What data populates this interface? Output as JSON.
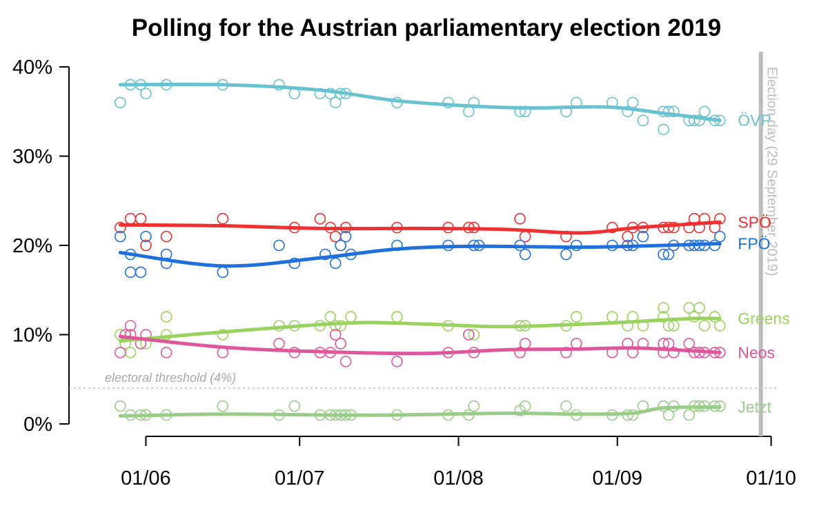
{
  "chart_data": {
    "type": "scatter",
    "title": "Polling for the Austrian parliamentary election 2019",
    "xlabel": "",
    "ylabel": "",
    "x_range": [
      "2019-05-17",
      "2019-10-02"
    ],
    "ylim": [
      0,
      40
    ],
    "x_ticks": [
      {
        "date": "2019-06-01",
        "label": "01/06"
      },
      {
        "date": "2019-07-01",
        "label": "01/07"
      },
      {
        "date": "2019-08-01",
        "label": "01/08"
      },
      {
        "date": "2019-09-01",
        "label": "01/09"
      },
      {
        "date": "2019-10-01",
        "label": "01/10"
      }
    ],
    "y_ticks": [
      {
        "value": 0,
        "label": "0%"
      },
      {
        "value": 10,
        "label": "10%"
      },
      {
        "value": 20,
        "label": "20%"
      },
      {
        "value": 30,
        "label": "30%"
      },
      {
        "value": 40,
        "label": "40%"
      }
    ],
    "grid": false,
    "threshold": {
      "value": 4,
      "label": "electoral threshold (4%)",
      "color": "#a9a9a9"
    },
    "election_day": {
      "date": "2019-09-29",
      "label": "Election day (29 September 2019)",
      "color": "#bdbdbd"
    },
    "series": [
      {
        "name": "ÖVP",
        "color": "#69c2d0",
        "points": [
          [
            "2019-05-27",
            36
          ],
          [
            "2019-05-29",
            38
          ],
          [
            "2019-05-31",
            38
          ],
          [
            "2019-06-01",
            37
          ],
          [
            "2019-06-05",
            38
          ],
          [
            "2019-06-16",
            38
          ],
          [
            "2019-06-27",
            38
          ],
          [
            "2019-06-30",
            37
          ],
          [
            "2019-07-05",
            37
          ],
          [
            "2019-07-07",
            37
          ],
          [
            "2019-07-08",
            36
          ],
          [
            "2019-07-09",
            37
          ],
          [
            "2019-07-10",
            37
          ],
          [
            "2019-07-20",
            36
          ],
          [
            "2019-07-30",
            36
          ],
          [
            "2019-08-03",
            35
          ],
          [
            "2019-08-04",
            36
          ],
          [
            "2019-08-13",
            35
          ],
          [
            "2019-08-14",
            35
          ],
          [
            "2019-08-22",
            35
          ],
          [
            "2019-08-24",
            36
          ],
          [
            "2019-08-31",
            36
          ],
          [
            "2019-09-03",
            35
          ],
          [
            "2019-09-04",
            36
          ],
          [
            "2019-09-06",
            34
          ],
          [
            "2019-09-10",
            35
          ],
          [
            "2019-09-10",
            33
          ],
          [
            "2019-09-11",
            35
          ],
          [
            "2019-09-12",
            35
          ],
          [
            "2019-09-15",
            34
          ],
          [
            "2019-09-16",
            34
          ],
          [
            "2019-09-17",
            34
          ],
          [
            "2019-09-18",
            35
          ],
          [
            "2019-09-20",
            34
          ],
          [
            "2019-09-21",
            34
          ]
        ],
        "trend": [
          [
            "2019-05-27",
            38
          ],
          [
            "2019-06-16",
            38
          ],
          [
            "2019-07-05",
            37.4
          ],
          [
            "2019-07-20",
            36.2
          ],
          [
            "2019-08-04",
            35.6
          ],
          [
            "2019-08-15",
            35.4
          ],
          [
            "2019-08-30",
            35.5
          ],
          [
            "2019-09-10",
            34.8
          ],
          [
            "2019-09-21",
            34
          ]
        ]
      },
      {
        "name": "SPÖ",
        "color": "#f03030",
        "points": [
          [
            "2019-05-27",
            22
          ],
          [
            "2019-05-29",
            23
          ],
          [
            "2019-05-31",
            23
          ],
          [
            "2019-06-01",
            20
          ],
          [
            "2019-06-05",
            21
          ],
          [
            "2019-06-16",
            23
          ],
          [
            "2019-06-30",
            22
          ],
          [
            "2019-07-05",
            23
          ],
          [
            "2019-07-07",
            22
          ],
          [
            "2019-07-08",
            21
          ],
          [
            "2019-07-09",
            20
          ],
          [
            "2019-07-10",
            22
          ],
          [
            "2019-07-20",
            22
          ],
          [
            "2019-07-30",
            22
          ],
          [
            "2019-08-03",
            22
          ],
          [
            "2019-08-04",
            22
          ],
          [
            "2019-08-13",
            23
          ],
          [
            "2019-08-14",
            21
          ],
          [
            "2019-08-22",
            21
          ],
          [
            "2019-08-31",
            22
          ],
          [
            "2019-09-03",
            21
          ],
          [
            "2019-09-04",
            22
          ],
          [
            "2019-09-06",
            22
          ],
          [
            "2019-09-10",
            22
          ],
          [
            "2019-09-11",
            22
          ],
          [
            "2019-09-12",
            22
          ],
          [
            "2019-09-15",
            22
          ],
          [
            "2019-09-16",
            23
          ],
          [
            "2019-09-17",
            22
          ],
          [
            "2019-09-18",
            23
          ],
          [
            "2019-09-20",
            22
          ],
          [
            "2019-09-21",
            23
          ]
        ],
        "trend": [
          [
            "2019-05-27",
            22.3
          ],
          [
            "2019-06-16",
            22.2
          ],
          [
            "2019-07-05",
            21.9
          ],
          [
            "2019-07-25",
            21.9
          ],
          [
            "2019-08-10",
            21.8
          ],
          [
            "2019-08-25",
            21.4
          ],
          [
            "2019-09-05",
            22
          ],
          [
            "2019-09-21",
            22.6
          ]
        ]
      },
      {
        "name": "FPÖ",
        "color": "#1f6fdc",
        "points": [
          [
            "2019-05-27",
            21
          ],
          [
            "2019-05-29",
            19
          ],
          [
            "2019-05-29",
            17
          ],
          [
            "2019-05-31",
            17
          ],
          [
            "2019-06-01",
            21
          ],
          [
            "2019-06-05",
            18
          ],
          [
            "2019-06-05",
            19
          ],
          [
            "2019-06-16",
            17
          ],
          [
            "2019-06-27",
            20
          ],
          [
            "2019-06-30",
            18
          ],
          [
            "2019-07-06",
            19
          ],
          [
            "2019-07-08",
            18
          ],
          [
            "2019-07-09",
            20
          ],
          [
            "2019-07-10",
            21
          ],
          [
            "2019-07-11",
            19
          ],
          [
            "2019-07-20",
            20
          ],
          [
            "2019-07-30",
            20
          ],
          [
            "2019-08-04",
            20
          ],
          [
            "2019-08-05",
            20
          ],
          [
            "2019-08-13",
            20
          ],
          [
            "2019-08-14",
            19
          ],
          [
            "2019-08-22",
            19
          ],
          [
            "2019-08-24",
            20
          ],
          [
            "2019-08-31",
            20
          ],
          [
            "2019-09-03",
            20
          ],
          [
            "2019-09-04",
            20
          ],
          [
            "2019-09-06",
            21
          ],
          [
            "2019-09-10",
            19
          ],
          [
            "2019-09-11",
            19
          ],
          [
            "2019-09-12",
            20
          ],
          [
            "2019-09-15",
            20
          ],
          [
            "2019-09-16",
            20
          ],
          [
            "2019-09-17",
            20
          ],
          [
            "2019-09-18",
            20
          ],
          [
            "2019-09-20",
            20
          ],
          [
            "2019-09-21",
            21
          ]
        ],
        "trend": [
          [
            "2019-05-27",
            19.2
          ],
          [
            "2019-06-16",
            17.7
          ],
          [
            "2019-07-05",
            18.6
          ],
          [
            "2019-07-20",
            19.6
          ],
          [
            "2019-08-04",
            19.9
          ],
          [
            "2019-08-25",
            19.8
          ],
          [
            "2019-09-10",
            20
          ],
          [
            "2019-09-21",
            20.2
          ]
        ]
      },
      {
        "name": "Greens",
        "color": "#9ad25f",
        "points": [
          [
            "2019-05-27",
            10
          ],
          [
            "2019-05-28",
            9
          ],
          [
            "2019-05-29",
            8
          ],
          [
            "2019-05-31",
            9
          ],
          [
            "2019-06-01",
            9
          ],
          [
            "2019-06-05",
            10
          ],
          [
            "2019-06-05",
            12
          ],
          [
            "2019-06-16",
            10
          ],
          [
            "2019-06-27",
            11
          ],
          [
            "2019-06-30",
            11
          ],
          [
            "2019-07-05",
            11
          ],
          [
            "2019-07-07",
            12
          ],
          [
            "2019-07-08",
            11
          ],
          [
            "2019-07-09",
            11
          ],
          [
            "2019-07-11",
            12
          ],
          [
            "2019-07-20",
            12
          ],
          [
            "2019-07-30",
            11
          ],
          [
            "2019-08-03",
            10
          ],
          [
            "2019-08-04",
            10
          ],
          [
            "2019-08-13",
            11
          ],
          [
            "2019-08-14",
            11
          ],
          [
            "2019-08-22",
            11
          ],
          [
            "2019-08-24",
            12
          ],
          [
            "2019-08-31",
            12
          ],
          [
            "2019-09-03",
            11
          ],
          [
            "2019-09-04",
            12
          ],
          [
            "2019-09-06",
            11
          ],
          [
            "2019-09-10",
            12
          ],
          [
            "2019-09-10",
            13
          ],
          [
            "2019-09-11",
            11
          ],
          [
            "2019-09-12",
            11
          ],
          [
            "2019-09-15",
            13
          ],
          [
            "2019-09-16",
            12
          ],
          [
            "2019-09-17",
            13
          ],
          [
            "2019-09-18",
            11
          ],
          [
            "2019-09-20",
            12
          ],
          [
            "2019-09-21",
            11
          ]
        ],
        "trend": [
          [
            "2019-05-27",
            9.3
          ],
          [
            "2019-06-16",
            10.3
          ],
          [
            "2019-07-10",
            11.3
          ],
          [
            "2019-07-25",
            11.2
          ],
          [
            "2019-08-10",
            10.9
          ],
          [
            "2019-08-30",
            11.3
          ],
          [
            "2019-09-15",
            11.8
          ],
          [
            "2019-09-21",
            11.8
          ]
        ]
      },
      {
        "name": "Neos",
        "color": "#e0569b",
        "points": [
          [
            "2019-05-27",
            8
          ],
          [
            "2019-05-28",
            10
          ],
          [
            "2019-05-29",
            11
          ],
          [
            "2019-05-29",
            10
          ],
          [
            "2019-05-31",
            9
          ],
          [
            "2019-06-01",
            10
          ],
          [
            "2019-06-05",
            8
          ],
          [
            "2019-06-16",
            8
          ],
          [
            "2019-06-27",
            9
          ],
          [
            "2019-06-30",
            8
          ],
          [
            "2019-07-05",
            8
          ],
          [
            "2019-07-07",
            8
          ],
          [
            "2019-07-08",
            10
          ],
          [
            "2019-07-09",
            9
          ],
          [
            "2019-07-10",
            7
          ],
          [
            "2019-07-20",
            7
          ],
          [
            "2019-07-30",
            8
          ],
          [
            "2019-08-03",
            10
          ],
          [
            "2019-08-04",
            8
          ],
          [
            "2019-08-13",
            8
          ],
          [
            "2019-08-14",
            9
          ],
          [
            "2019-08-22",
            8
          ],
          [
            "2019-08-24",
            9
          ],
          [
            "2019-08-31",
            8
          ],
          [
            "2019-09-03",
            9
          ],
          [
            "2019-09-04",
            8
          ],
          [
            "2019-09-06",
            9
          ],
          [
            "2019-09-10",
            8
          ],
          [
            "2019-09-10",
            9
          ],
          [
            "2019-09-11",
            9
          ],
          [
            "2019-09-12",
            8
          ],
          [
            "2019-09-15",
            9
          ],
          [
            "2019-09-16",
            8
          ],
          [
            "2019-09-17",
            8
          ],
          [
            "2019-09-18",
            8
          ],
          [
            "2019-09-20",
            8
          ],
          [
            "2019-09-21",
            8
          ]
        ],
        "trend": [
          [
            "2019-05-27",
            9.8
          ],
          [
            "2019-06-16",
            8.6
          ],
          [
            "2019-07-05",
            8.1
          ],
          [
            "2019-07-25",
            7.9
          ],
          [
            "2019-08-10",
            8.3
          ],
          [
            "2019-08-25",
            8.4
          ],
          [
            "2019-09-05",
            8.5
          ],
          [
            "2019-09-21",
            8
          ]
        ]
      },
      {
        "name": "Jetzt",
        "color": "#99cc88",
        "points": [
          [
            "2019-05-27",
            2
          ],
          [
            "2019-05-29",
            1
          ],
          [
            "2019-05-31",
            1
          ],
          [
            "2019-06-01",
            1
          ],
          [
            "2019-06-05",
            1
          ],
          [
            "2019-06-16",
            2
          ],
          [
            "2019-06-27",
            1
          ],
          [
            "2019-06-30",
            2
          ],
          [
            "2019-07-05",
            1
          ],
          [
            "2019-07-07",
            1
          ],
          [
            "2019-07-08",
            1
          ],
          [
            "2019-07-09",
            1
          ],
          [
            "2019-07-10",
            1
          ],
          [
            "2019-07-11",
            1
          ],
          [
            "2019-07-20",
            1
          ],
          [
            "2019-07-30",
            1
          ],
          [
            "2019-08-03",
            1
          ],
          [
            "2019-08-04",
            2
          ],
          [
            "2019-08-13",
            1.5
          ],
          [
            "2019-08-14",
            2
          ],
          [
            "2019-08-22",
            2
          ],
          [
            "2019-08-24",
            1
          ],
          [
            "2019-08-31",
            1
          ],
          [
            "2019-09-03",
            1
          ],
          [
            "2019-09-04",
            1
          ],
          [
            "2019-09-06",
            2
          ],
          [
            "2019-09-10",
            2
          ],
          [
            "2019-09-11",
            1
          ],
          [
            "2019-09-12",
            2
          ],
          [
            "2019-09-15",
            1
          ],
          [
            "2019-09-16",
            2
          ],
          [
            "2019-09-17",
            2
          ],
          [
            "2019-09-18",
            2
          ],
          [
            "2019-09-20",
            2
          ],
          [
            "2019-09-21",
            2
          ]
        ],
        "trend": [
          [
            "2019-05-27",
            0.9
          ],
          [
            "2019-06-16",
            1.1
          ],
          [
            "2019-07-05",
            1
          ],
          [
            "2019-07-20",
            1
          ],
          [
            "2019-08-10",
            1.2
          ],
          [
            "2019-08-25",
            1.1
          ],
          [
            "2019-09-04",
            1.2
          ],
          [
            "2019-09-10",
            1.8
          ],
          [
            "2019-09-21",
            1.9
          ]
        ]
      }
    ]
  }
}
